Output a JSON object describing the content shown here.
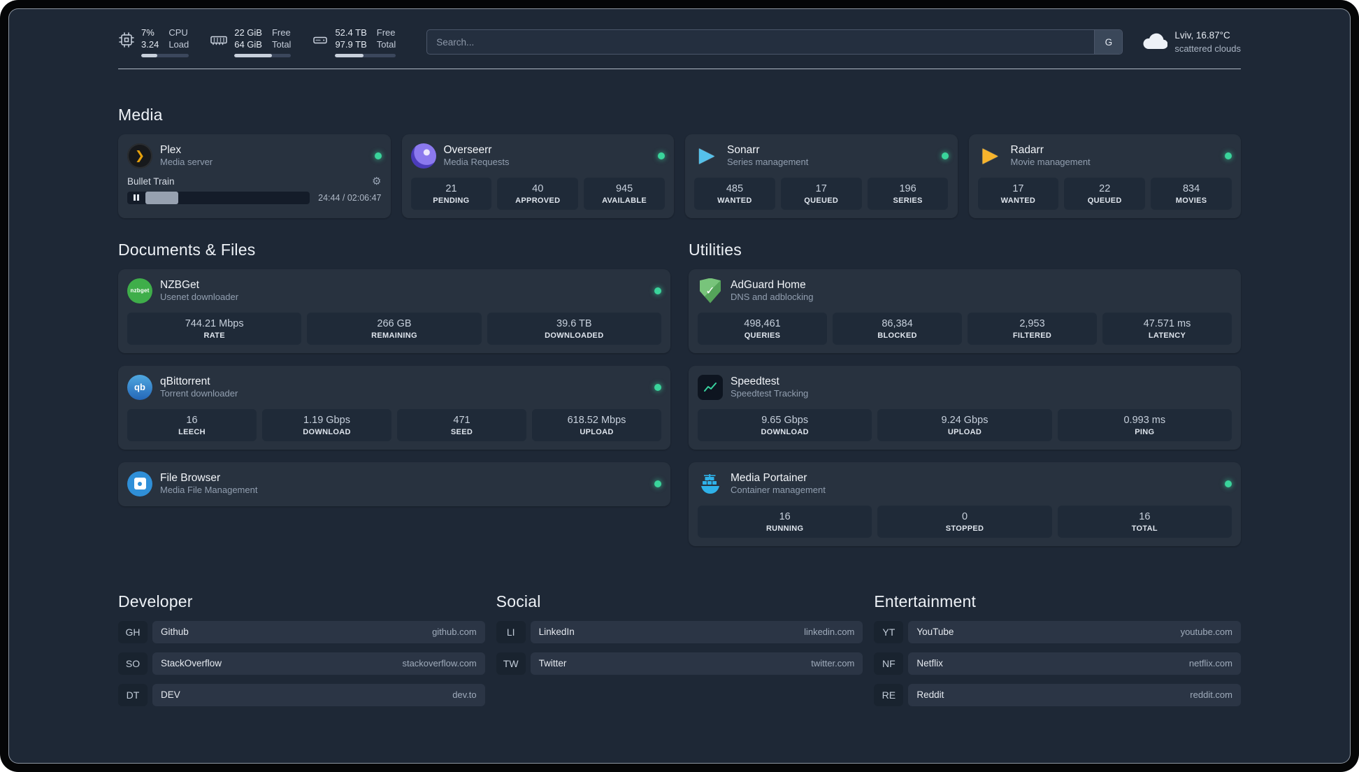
{
  "colors": {
    "status_online": "#3ad49b",
    "accent_plex": "#e5a00d",
    "accent_sonarr": "#55c1ea",
    "accent_radarr": "#f7b42c",
    "accent_nzbget": "#3fae4a",
    "accent_qbittorrent": "#2e7fd1",
    "accent_adguard": "#5aa75a",
    "accent_speedtest": "#38d39f",
    "accent_portainer": "#2fb1e8"
  },
  "topbar": {
    "resources": [
      {
        "icon": "cpu-icon",
        "top_value": "7%",
        "bottom_value": "3.24",
        "top_label": "CPU",
        "bottom_label": "Load",
        "progress": 33
      },
      {
        "icon": "memory-icon",
        "top_value": "22 GiB",
        "bottom_value": "64 GiB",
        "top_label": "Free",
        "bottom_label": "Total",
        "progress": 66
      },
      {
        "icon": "disk-icon",
        "top_value": "52.4 TB",
        "bottom_value": "97.9 TB",
        "top_label": "Free",
        "bottom_label": "Total",
        "progress": 47
      }
    ],
    "search": {
      "placeholder": "Search...",
      "provider_button": "G"
    },
    "weather": {
      "icon": "cloud-icon",
      "location": "Lviv, 16.87°C",
      "condition": "scattered clouds"
    }
  },
  "groups": {
    "media": {
      "title": "Media",
      "services": [
        {
          "name": "Plex",
          "subtitle": "Media server",
          "icon": "plex-icon",
          "online": true,
          "player": {
            "track": "Bullet Train",
            "time": "24:44 / 02:06:47",
            "progress": 20
          }
        },
        {
          "name": "Overseerr",
          "subtitle": "Media Requests",
          "icon": "overseerr-icon",
          "online": true,
          "stats": [
            {
              "value": "21",
              "label": "PENDING"
            },
            {
              "value": "40",
              "label": "APPROVED"
            },
            {
              "value": "945",
              "label": "AVAILABLE"
            }
          ]
        },
        {
          "name": "Sonarr",
          "subtitle": "Series management",
          "icon": "sonarr-icon",
          "online": true,
          "stats": [
            {
              "value": "485",
              "label": "WANTED"
            },
            {
              "value": "17",
              "label": "QUEUED"
            },
            {
              "value": "196",
              "label": "SERIES"
            }
          ]
        },
        {
          "name": "Radarr",
          "subtitle": "Movie management",
          "icon": "radarr-icon",
          "online": true,
          "stats": [
            {
              "value": "17",
              "label": "WANTED"
            },
            {
              "value": "22",
              "label": "QUEUED"
            },
            {
              "value": "834",
              "label": "MOVIES"
            }
          ]
        }
      ]
    },
    "documents": {
      "title": "Documents & Files",
      "services": [
        {
          "name": "NZBGet",
          "subtitle": "Usenet downloader",
          "icon": "nzbget-icon",
          "icon_text": "nzbget",
          "online": true,
          "stats": [
            {
              "value": "744.21 Mbps",
              "label": "RATE"
            },
            {
              "value": "266 GB",
              "label": "REMAINING"
            },
            {
              "value": "39.6 TB",
              "label": "DOWNLOADED"
            }
          ]
        },
        {
          "name": "qBittorrent",
          "subtitle": "Torrent downloader",
          "icon": "qbittorrent-icon",
          "icon_text": "qb",
          "online": true,
          "stats": [
            {
              "value": "16",
              "label": "LEECH"
            },
            {
              "value": "1.19 Gbps",
              "label": "DOWNLOAD"
            },
            {
              "value": "471",
              "label": "SEED"
            },
            {
              "value": "618.52 Mbps",
              "label": "UPLOAD"
            }
          ]
        },
        {
          "name": "File Browser",
          "subtitle": "Media File Management",
          "icon": "filebrowser-icon",
          "online": true,
          "stats": []
        }
      ]
    },
    "utilities": {
      "title": "Utilities",
      "services": [
        {
          "name": "AdGuard Home",
          "subtitle": "DNS and adblocking",
          "icon": "adguard-icon",
          "online": false,
          "stats": [
            {
              "value": "498,461",
              "label": "QUERIES"
            },
            {
              "value": "86,384",
              "label": "BLOCKED"
            },
            {
              "value": "2,953",
              "label": "FILTERED"
            },
            {
              "value": "47.571 ms",
              "label": "LATENCY"
            }
          ]
        },
        {
          "name": "Speedtest",
          "subtitle": "Speedtest Tracking",
          "icon": "speedtest-icon",
          "online": false,
          "stats": [
            {
              "value": "9.65 Gbps",
              "label": "DOWNLOAD"
            },
            {
              "value": "9.24 Gbps",
              "label": "UPLOAD"
            },
            {
              "value": "0.993 ms",
              "label": "PING"
            }
          ]
        },
        {
          "name": "Media Portainer",
          "subtitle": "Container management",
          "icon": "portainer-icon",
          "online": true,
          "stats": [
            {
              "value": "16",
              "label": "RUNNING"
            },
            {
              "value": "0",
              "label": "STOPPED"
            },
            {
              "value": "16",
              "label": "TOTAL"
            }
          ]
        }
      ]
    }
  },
  "bookmarks": [
    {
      "title": "Developer",
      "items": [
        {
          "abbr": "GH",
          "name": "Github",
          "url": "github.com"
        },
        {
          "abbr": "SO",
          "name": "StackOverflow",
          "url": "stackoverflow.com"
        },
        {
          "abbr": "DT",
          "name": "DEV",
          "url": "dev.to"
        }
      ]
    },
    {
      "title": "Social",
      "items": [
        {
          "abbr": "LI",
          "name": "LinkedIn",
          "url": "linkedin.com"
        },
        {
          "abbr": "TW",
          "name": "Twitter",
          "url": "twitter.com"
        }
      ]
    },
    {
      "title": "Entertainment",
      "items": [
        {
          "abbr": "YT",
          "name": "YouTube",
          "url": "youtube.com"
        },
        {
          "abbr": "NF",
          "name": "Netflix",
          "url": "netflix.com"
        },
        {
          "abbr": "RE",
          "name": "Reddit",
          "url": "reddit.com"
        }
      ]
    }
  ]
}
